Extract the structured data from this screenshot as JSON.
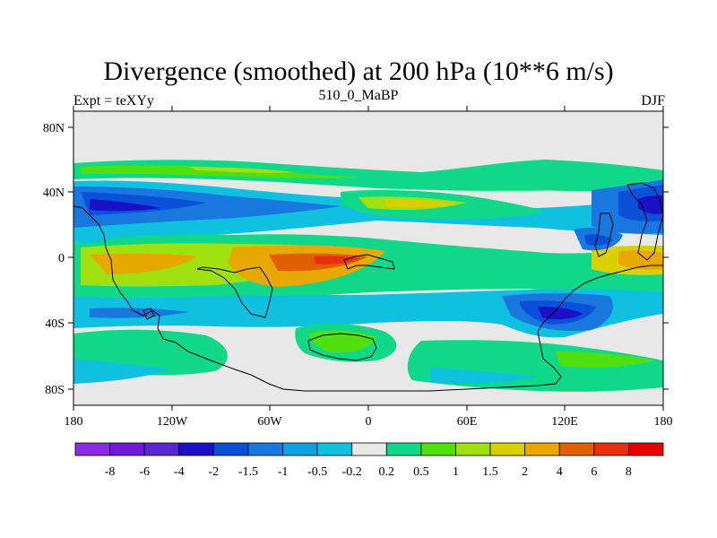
{
  "title": "Divergence (smoothed) at 200 hPa (10**6 m/s)",
  "left_label": "Expt = teXYy",
  "center_label": "510_0_MaBP",
  "right_label": "DJF",
  "y_ticks": [
    "80N",
    "40N",
    "0",
    "40S",
    "80S"
  ],
  "x_ticks": [
    "180",
    "120W",
    "60W",
    "0",
    "60E",
    "120E",
    "180"
  ],
  "colorbar": {
    "colors": [
      "#8a2be2",
      "#7218d8",
      "#5a28d0",
      "#1a10c8",
      "#0a50d8",
      "#1878e0",
      "#10a0e0",
      "#10c0e0",
      "#e8e8e8",
      "#10d888",
      "#50e010",
      "#a0e010",
      "#d8d000",
      "#e8a800",
      "#e06000",
      "#e83010",
      "#e80000"
    ],
    "labels": [
      "-8",
      "-6",
      "-4",
      "-2",
      "-1.5",
      "-1",
      "-0.5",
      "-0.2",
      "0.2",
      "0.5",
      "1",
      "1.5",
      "2",
      "4",
      "6",
      "8"
    ]
  },
  "map": {
    "background": "#e8e8e8",
    "lat_range": [
      -90,
      90
    ],
    "lon_range": [
      -180,
      180
    ]
  }
}
